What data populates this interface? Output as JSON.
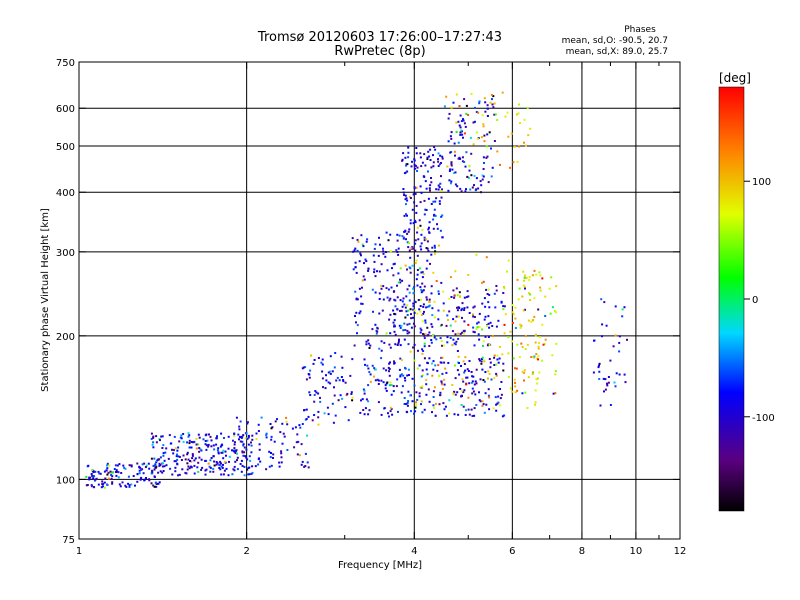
{
  "chart_data": {
    "type": "scatter",
    "title": "Tromsø 20120603 17:26:00–17:27:43",
    "subtitle": "RwPretec (8p)",
    "xlabel": "Frequency [MHz]",
    "ylabel": "Stationary phase Virtual Height [km]",
    "x_scale": "log",
    "y_scale": "log",
    "xlim": [
      1,
      12
    ],
    "ylim": [
      75,
      750
    ],
    "x_ticks": [
      1,
      2,
      4,
      6,
      8,
      10,
      12
    ],
    "x_tick_labels": [
      "1",
      "2",
      "4",
      "6",
      "8",
      "10",
      "12"
    ],
    "x_minor_ticks": [
      3,
      5,
      7,
      9,
      11
    ],
    "y_ticks": [
      75,
      100,
      200,
      300,
      400,
      500,
      600,
      750
    ],
    "y_tick_labels": [
      "75",
      "100",
      "200",
      "300",
      "400",
      "500",
      "600",
      "750"
    ],
    "grid_x": [
      2,
      4,
      6,
      8,
      10
    ],
    "grid_y": [
      100,
      200,
      300,
      400,
      500,
      600
    ],
    "grid": true,
    "phase_info": {
      "heading": "Phases",
      "line1": "mean, sd,O: -90.5, 20.7",
      "line2": "mean, sd,X:  89.0, 25.7"
    },
    "colorbar": {
      "label": "[deg]",
      "min": -180,
      "max": 180,
      "ticks": [
        100,
        0,
        -100
      ],
      "tick_labels": [
        "100",
        "0",
        "-100"
      ],
      "colormap": "rainbow: black-purple-blue-cyan-green-yellow-orange-red"
    },
    "series": [
      {
        "phase_mean": -90.5,
        "phase_sd": 20.7,
        "clusters": [
          {
            "x": [
              1.03,
              1.4
            ],
            "y": [
              96,
              108
            ],
            "n": 130
          },
          {
            "x": [
              1.35,
              2.05
            ],
            "y": [
              102,
              125
            ],
            "n": 260
          },
          {
            "x": [
              1.9,
              2.6
            ],
            "y": [
              105,
              135
            ],
            "n": 90
          },
          {
            "x": [
              2.5,
              3.1
            ],
            "y": [
              130,
              185
            ],
            "n": 80
          },
          {
            "x": [
              3.1,
              4.3
            ],
            "y": [
              185,
              330
            ],
            "n": 220
          },
          {
            "x": [
              3.8,
              4.5
            ],
            "y": [
              300,
              500
            ],
            "n": 160
          },
          {
            "x": [
              4.6,
              5.6
            ],
            "y": [
              400,
              640
            ],
            "n": 110
          },
          {
            "x": [
              3.2,
              5.8
            ],
            "y": [
              135,
              180
            ],
            "n": 260
          },
          {
            "x": [
              3.6,
              5.8
            ],
            "y": [
              190,
              260
            ],
            "n": 170
          },
          {
            "x": [
              8.4,
              9.7
            ],
            "y": [
              140,
              240
            ],
            "n": 40
          }
        ]
      },
      {
        "phase_mean": 89.0,
        "phase_sd": 25.7,
        "clusters": [
          {
            "x": [
              4.0,
              6.8
            ],
            "y": [
              140,
              300
            ],
            "n": 150
          },
          {
            "x": [
              6.0,
              7.2
            ],
            "y": [
              150,
              270
            ],
            "n": 70
          },
          {
            "x": [
              4.5,
              6.5
            ],
            "y": [
              450,
              650
            ],
            "n": 50
          }
        ]
      }
    ]
  }
}
